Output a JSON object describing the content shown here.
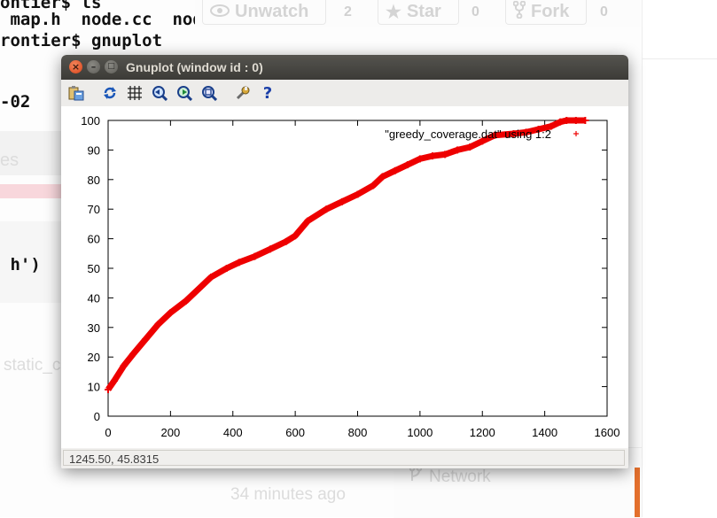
{
  "terminal": {
    "lines": [
      "ontier$ ls",
      " map.h  node.cc  node.h  README.md",
      "rontier$ gnuplot",
      "-02",
      " h')"
    ],
    "faint_left_1": "es",
    "faint_left_2": "static_c"
  },
  "github": {
    "unwatch_label": "Unwatch",
    "unwatch_count": "2",
    "star_label": "Star",
    "star_count": "0",
    "fork_label": "Fork",
    "fork_count": "0",
    "time_ago": "34 minutes ago",
    "network_label": "Network",
    "accent_color": "#e36f2c"
  },
  "window": {
    "title": "Gnuplot (window id : 0)",
    "status_text": "1245.50,  45.8315",
    "toolbar_icons": [
      "copy-to-clipboard-icon",
      "replot-icon",
      "grid-icon",
      "unzoom-previous-icon",
      "unzoom-next-icon",
      "autoscale-icon",
      "config-icon",
      "help-icon"
    ]
  },
  "chart_data": {
    "type": "scatter",
    "title": "",
    "xlabel": "",
    "ylabel": "",
    "xlim": [
      0,
      1600
    ],
    "ylim": [
      0,
      100
    ],
    "xticks": [
      "0",
      "200",
      "400",
      "600",
      "800",
      "1000",
      "1200",
      "1400",
      "1600"
    ],
    "yticks": [
      "0",
      "10",
      "20",
      "30",
      "40",
      "50",
      "60",
      "70",
      "80",
      "90",
      "100"
    ],
    "grid": false,
    "legend": "top-right",
    "series": [
      {
        "name": "\"greedy_coverage.dat\" using 1:2",
        "color": "#ee0000",
        "marker": "+",
        "x": [
          0,
          20,
          50,
          80,
          120,
          160,
          200,
          250,
          300,
          330,
          380,
          420,
          470,
          520,
          570,
          600,
          640,
          700,
          750,
          800,
          850,
          880,
          920,
          960,
          1000,
          1040,
          1080,
          1120,
          1160,
          1200,
          1240,
          1300,
          1340,
          1380,
          1420,
          1450,
          1470,
          1500,
          1530
        ],
        "y": [
          9,
          12,
          17,
          21,
          26,
          31,
          35,
          39,
          44,
          47,
          50,
          52,
          54,
          56.5,
          59,
          61,
          66,
          70,
          72.5,
          75,
          78,
          81,
          83,
          85,
          87,
          88,
          88.5,
          90,
          91,
          93,
          95,
          95.5,
          96,
          97,
          98,
          99.5,
          100,
          100,
          100
        ]
      }
    ]
  }
}
